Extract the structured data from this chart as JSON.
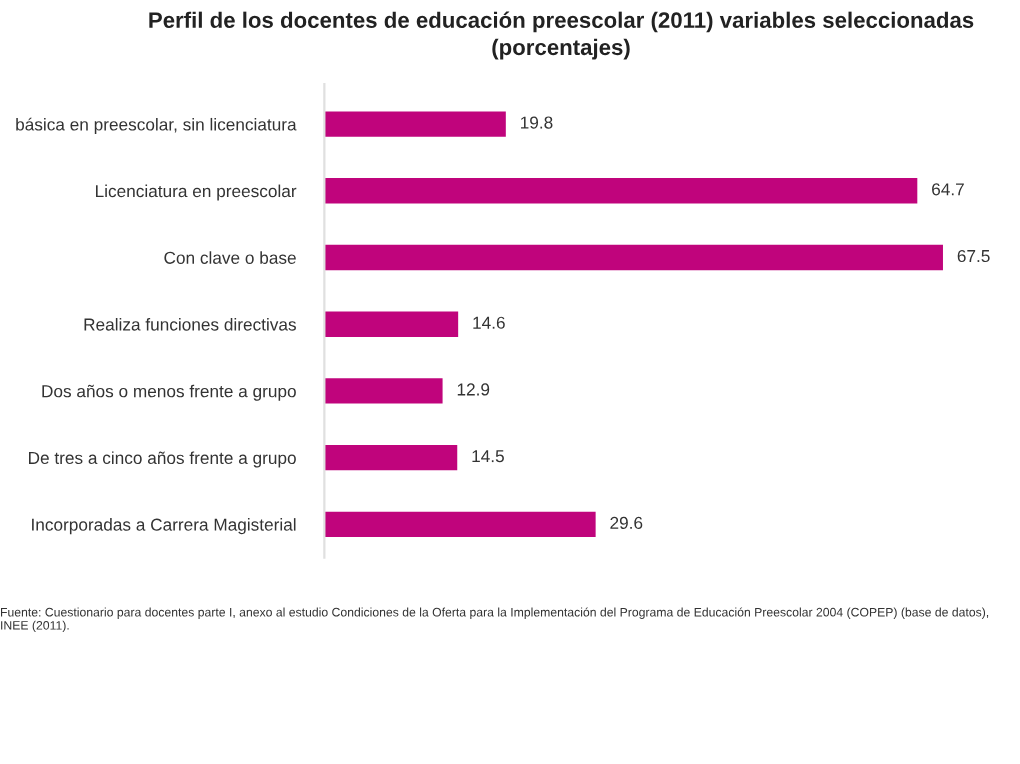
{
  "chart_data": {
    "type": "bar",
    "orientation": "horizontal",
    "title": "Perfil de los docentes de educación preescolar (2011) variables seleccionadas\n(porcentajes)",
    "categories": [
      "básica en preescolar, sin licenciatura",
      "Licenciatura en preescolar",
      "Con clave o base",
      "Realiza funciones directivas",
      "Dos años o menos frente a grupo",
      "De tres a cinco años frente a grupo",
      "Incorporadas a Carrera Magisterial"
    ],
    "values": [
      19.8,
      64.7,
      67.5,
      14.6,
      12.9,
      14.5,
      29.6
    ],
    "color": "#c0047c",
    "data_labels": true,
    "grid": false,
    "legend": false,
    "annotations": [
      "Fuente: Cuestionario para docentes parte I, anexo al estudio Condiciones de la Oferta para la Implementación del Programa de Educación Preescolar 2004 (COPEP) (base de datos), INEE (2011)."
    ]
  }
}
